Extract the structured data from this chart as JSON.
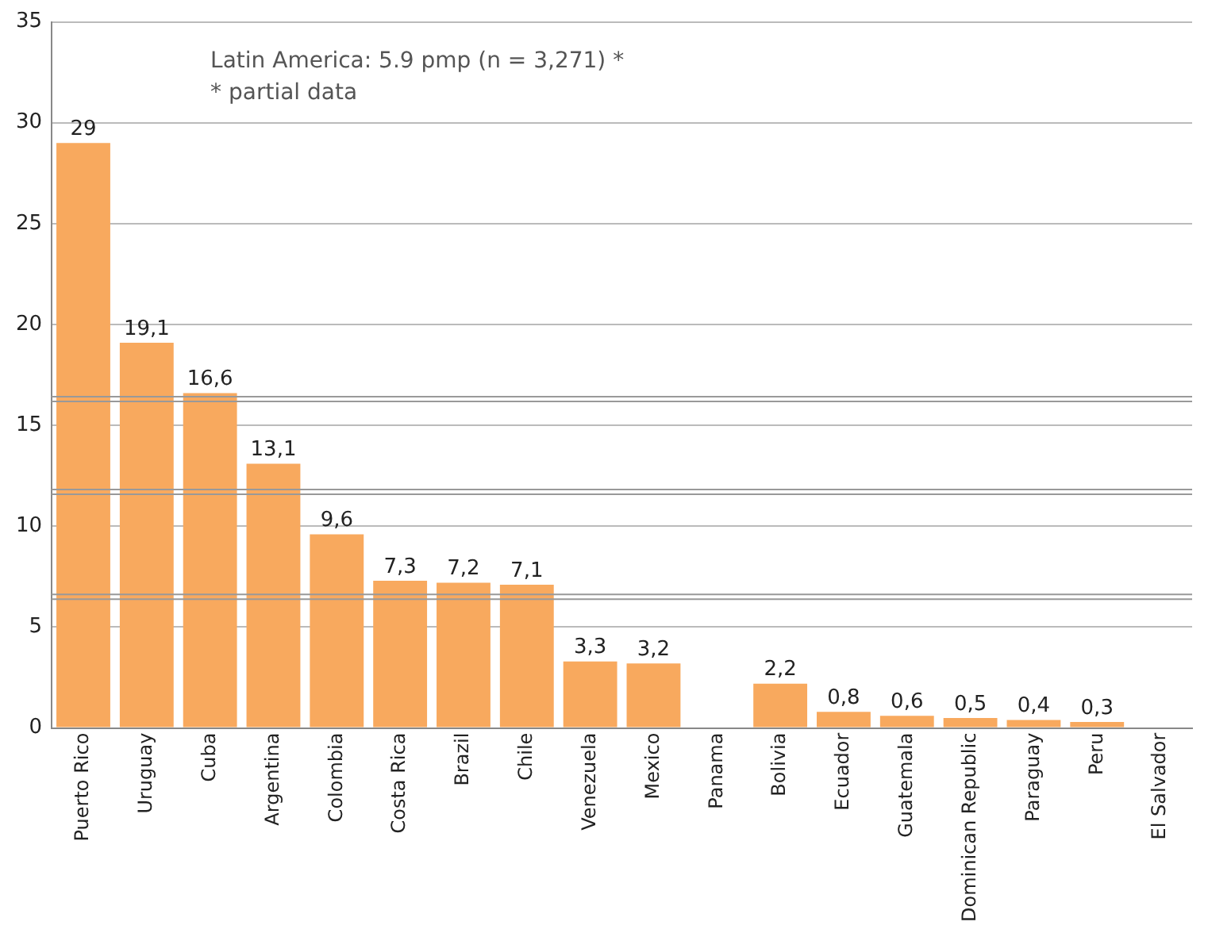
{
  "chart_data": {
    "type": "bar",
    "categories": [
      "Puerto Rico",
      "Uruguay",
      "Cuba",
      "Argentina",
      "Colombia",
      "Costa Rica",
      "Brazil",
      "Chile",
      "Venezuela",
      "Mexico",
      "Panama",
      "Bolivia",
      "Ecuador",
      "Guatemala",
      "Dominican Republic",
      "Paraguay",
      "Peru",
      "El Salvador"
    ],
    "values": [
      29,
      19.1,
      16.6,
      13.1,
      9.6,
      7.3,
      7.2,
      7.1,
      3.3,
      3.2,
      null,
      2.2,
      0.8,
      0.6,
      0.5,
      0.4,
      0.3,
      null
    ],
    "value_labels": [
      "29",
      "19,1",
      "16,6",
      "13,1",
      "9,6",
      "7,3",
      "7,2",
      "7,1",
      "3,3",
      "3,2",
      null,
      "2,2",
      "0,8",
      "0,6",
      "0,5",
      "0,4",
      "0,3",
      null
    ],
    "color": "#f8a95e",
    "ylim": [
      0,
      35
    ],
    "yticks": [
      0,
      5,
      10,
      15,
      20,
      25,
      30,
      35
    ],
    "grid": "y",
    "ref_lines": [
      {
        "axis": "y",
        "value": 16.3,
        "color": "#999999"
      },
      {
        "axis": "y",
        "value": 11.7,
        "color": "#999999"
      },
      {
        "axis": "y",
        "value": 6.5,
        "color": "#999999"
      }
    ],
    "annotations": [
      "Latin America: 5.9 pmp (n = 3,271) *",
      "* partial data"
    ]
  }
}
